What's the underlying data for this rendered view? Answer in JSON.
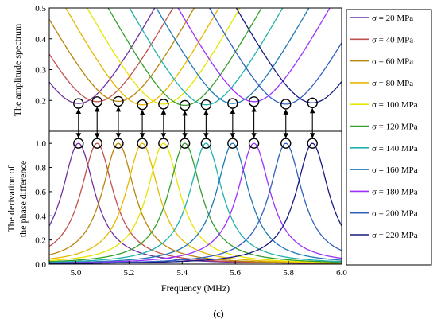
{
  "figure_label": "(c)",
  "chart_data": [
    {
      "type": "line",
      "panel": "top",
      "ylabel": "The amplitude spectrum",
      "xlim": [
        4.9,
        6.0
      ],
      "ylim": [
        0.1,
        0.5
      ],
      "yticks": [
        0.2,
        0.3,
        0.4,
        0.5
      ],
      "ytick_labels": [
        "0.2",
        "0.3",
        "0.4",
        "0.5"
      ],
      "series": [
        {
          "name": "σ = 20 MPa",
          "color": "#7030a0",
          "dip_x": 5.01,
          "dip_y": 0.19
        },
        {
          "name": "σ = 40 MPa",
          "color": "#c0504d",
          "dip_x": 5.08,
          "dip_y": 0.196
        },
        {
          "name": "σ = 60 MPa",
          "color": "#b8860b",
          "dip_x": 5.16,
          "dip_y": 0.197
        },
        {
          "name": "σ = 80 MPa",
          "color": "#e6b800",
          "dip_x": 5.25,
          "dip_y": 0.186
        },
        {
          "name": "σ = 100 MPa",
          "color": "#e6e600",
          "dip_x": 5.33,
          "dip_y": 0.188
        },
        {
          "name": "σ = 120 MPa",
          "color": "#33a02c",
          "dip_x": 5.41,
          "dip_y": 0.184
        },
        {
          "name": "σ = 140 MPa",
          "color": "#20b2aa",
          "dip_x": 5.49,
          "dip_y": 0.186
        },
        {
          "name": "σ = 160 MPa",
          "color": "#1f78b4",
          "dip_x": 5.59,
          "dip_y": 0.19
        },
        {
          "name": "σ = 180 MPa",
          "color": "#9b30ff",
          "dip_x": 5.67,
          "dip_y": 0.196
        },
        {
          "name": "σ = 200 MPa",
          "color": "#3060c0",
          "dip_x": 5.79,
          "dip_y": 0.188
        },
        {
          "name": "σ = 220 MPa",
          "color": "#1a1a80",
          "dip_x": 5.89,
          "dip_y": 0.192
        }
      ]
    },
    {
      "type": "line",
      "panel": "bottom",
      "xlabel": "Frequency (MHz)",
      "ylabel_lines": [
        "The derivation of",
        "the phase difference"
      ],
      "xlim": [
        4.9,
        6.0
      ],
      "ylim": [
        0.0,
        1.1
      ],
      "xticks": [
        5.0,
        5.2,
        5.4,
        5.6,
        5.8,
        6.0
      ],
      "xtick_labels": [
        "5.0",
        "5.2",
        "5.4",
        "5.6",
        "5.8",
        "6.0"
      ],
      "yticks": [
        0.0,
        0.2,
        0.4,
        0.6,
        0.8,
        1.0
      ],
      "ytick_labels": [
        "0.0",
        "0.2",
        "0.4",
        "0.6",
        "0.8",
        "1.0"
      ],
      "series": [
        {
          "name": "σ = 20 MPa",
          "color": "#7030a0",
          "peak_x": 5.01,
          "peak_y": 1.0
        },
        {
          "name": "σ = 40 MPa",
          "color": "#c0504d",
          "peak_x": 5.08,
          "peak_y": 1.0
        },
        {
          "name": "σ = 60 MPa",
          "color": "#b8860b",
          "peak_x": 5.16,
          "peak_y": 1.0
        },
        {
          "name": "σ = 80 MPa",
          "color": "#e6b800",
          "peak_x": 5.25,
          "peak_y": 1.0
        },
        {
          "name": "σ = 100 MPa",
          "color": "#e6e600",
          "peak_x": 5.33,
          "peak_y": 1.0
        },
        {
          "name": "σ = 120 MPa",
          "color": "#33a02c",
          "peak_x": 5.41,
          "peak_y": 1.0
        },
        {
          "name": "σ = 140 MPa",
          "color": "#20b2aa",
          "peak_x": 5.49,
          "peak_y": 1.0
        },
        {
          "name": "σ = 160 MPa",
          "color": "#1f78b4",
          "peak_x": 5.59,
          "peak_y": 1.0
        },
        {
          "name": "σ = 180 MPa",
          "color": "#9b30ff",
          "peak_x": 5.67,
          "peak_y": 1.0
        },
        {
          "name": "σ = 200 MPa",
          "color": "#3060c0",
          "peak_x": 5.79,
          "peak_y": 1.0
        },
        {
          "name": "σ = 220 MPa",
          "color": "#1a1a80",
          "peak_x": 5.89,
          "peak_y": 1.0
        }
      ]
    }
  ],
  "legend": {
    "placement": "right",
    "entries": [
      {
        "label": "σ = 20 MPa",
        "color": "#7030a0"
      },
      {
        "label": "σ = 40 MPa",
        "color": "#c0504d"
      },
      {
        "label": "σ = 60 MPa",
        "color": "#b8860b"
      },
      {
        "label": "σ = 80 MPa",
        "color": "#e6b800"
      },
      {
        "label": "σ = 100 MPa",
        "color": "#e6e600"
      },
      {
        "label": "σ = 120 MPa",
        "color": "#33a02c"
      },
      {
        "label": "σ = 140 MPa",
        "color": "#20b2aa"
      },
      {
        "label": "σ = 160 MPa",
        "color": "#1f78b4"
      },
      {
        "label": "σ = 180 MPa",
        "color": "#9b30ff"
      },
      {
        "label": "σ = 200 MPa",
        "color": "#3060c0"
      },
      {
        "label": "σ = 220 MPa",
        "color": "#1a1a80"
      }
    ]
  }
}
